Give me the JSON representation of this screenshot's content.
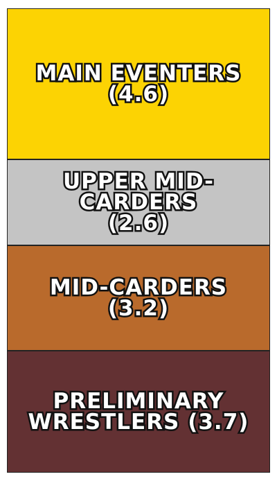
{
  "chart_data": {
    "type": "stacked_tiers",
    "categories": [
      "MAIN EVENTERS",
      "UPPER MID-CARDERS",
      "MID-CARDERS",
      "PRELIMINARY WRESTLERS"
    ],
    "values": [
      4.6,
      2.6,
      3.2,
      3.7
    ],
    "value_labels": [
      "(4.6)",
      "(2.6)",
      "(3.2)",
      "(3.7)"
    ],
    "colors": [
      "#fcd303",
      "#c4c4c4",
      "#b96a2c",
      "#633133"
    ]
  }
}
